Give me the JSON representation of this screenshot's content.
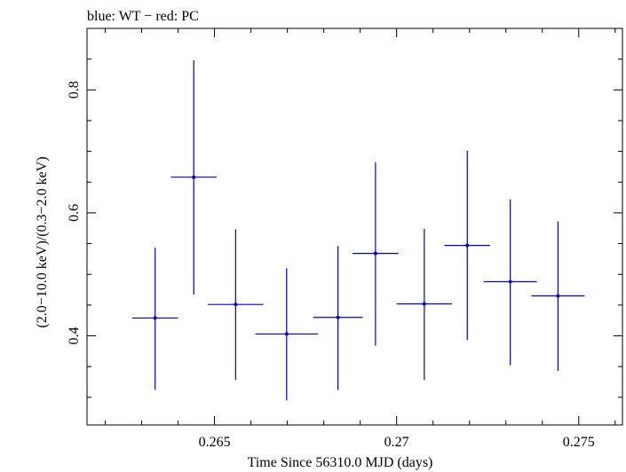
{
  "chart_data": {
    "type": "scatter",
    "title": "blue: WT − red: PC",
    "xlabel": "Time Since 56310.0 MJD (days)",
    "ylabel": "(2.0−10.0 keV)/(0.3−2.0 keV)",
    "xlim": [
      0.2615,
      0.2762
    ],
    "ylim": [
      0.255,
      0.9
    ],
    "xticks": [
      {
        "value": 0.265,
        "label": "0.265"
      },
      {
        "value": 0.27,
        "label": "0.27"
      },
      {
        "value": 0.275,
        "label": "0.275"
      }
    ],
    "yticks": [
      {
        "value": 0.4,
        "label": "0.4"
      },
      {
        "value": 0.6,
        "label": "0.6"
      },
      {
        "value": 0.8,
        "label": "0.8"
      }
    ],
    "series": [
      {
        "name": "WT",
        "color": "#0000cc",
        "points": [
          {
            "x": 0.26337,
            "y": 0.429,
            "xerr": 0.00063,
            "ylo": 0.312,
            "yhi": 0.543
          },
          {
            "x": 0.26443,
            "y": 0.658,
            "xerr": 0.00063,
            "ylo": 0.467,
            "yhi": 0.848
          },
          {
            "x": 0.26558,
            "y": 0.451,
            "xerr": 0.00076,
            "ylo": 0.328,
            "yhi": 0.573
          },
          {
            "x": 0.26698,
            "y": 0.403,
            "xerr": 0.00086,
            "ylo": 0.295,
            "yhi": 0.51
          },
          {
            "x": 0.26839,
            "y": 0.43,
            "xerr": 0.00068,
            "ylo": 0.312,
            "yhi": 0.546
          },
          {
            "x": 0.26942,
            "y": 0.534,
            "xerr": 0.00063,
            "ylo": 0.384,
            "yhi": 0.682
          },
          {
            "x": 0.27076,
            "y": 0.452,
            "xerr": 0.00076,
            "ylo": 0.328,
            "yhi": 0.574
          },
          {
            "x": 0.27194,
            "y": 0.547,
            "xerr": 0.00063,
            "ylo": 0.393,
            "yhi": 0.701
          },
          {
            "x": 0.27312,
            "y": 0.488,
            "xerr": 0.00073,
            "ylo": 0.352,
            "yhi": 0.622
          },
          {
            "x": 0.27443,
            "y": 0.465,
            "xerr": 0.00073,
            "ylo": 0.343,
            "yhi": 0.586
          }
        ]
      }
    ]
  }
}
